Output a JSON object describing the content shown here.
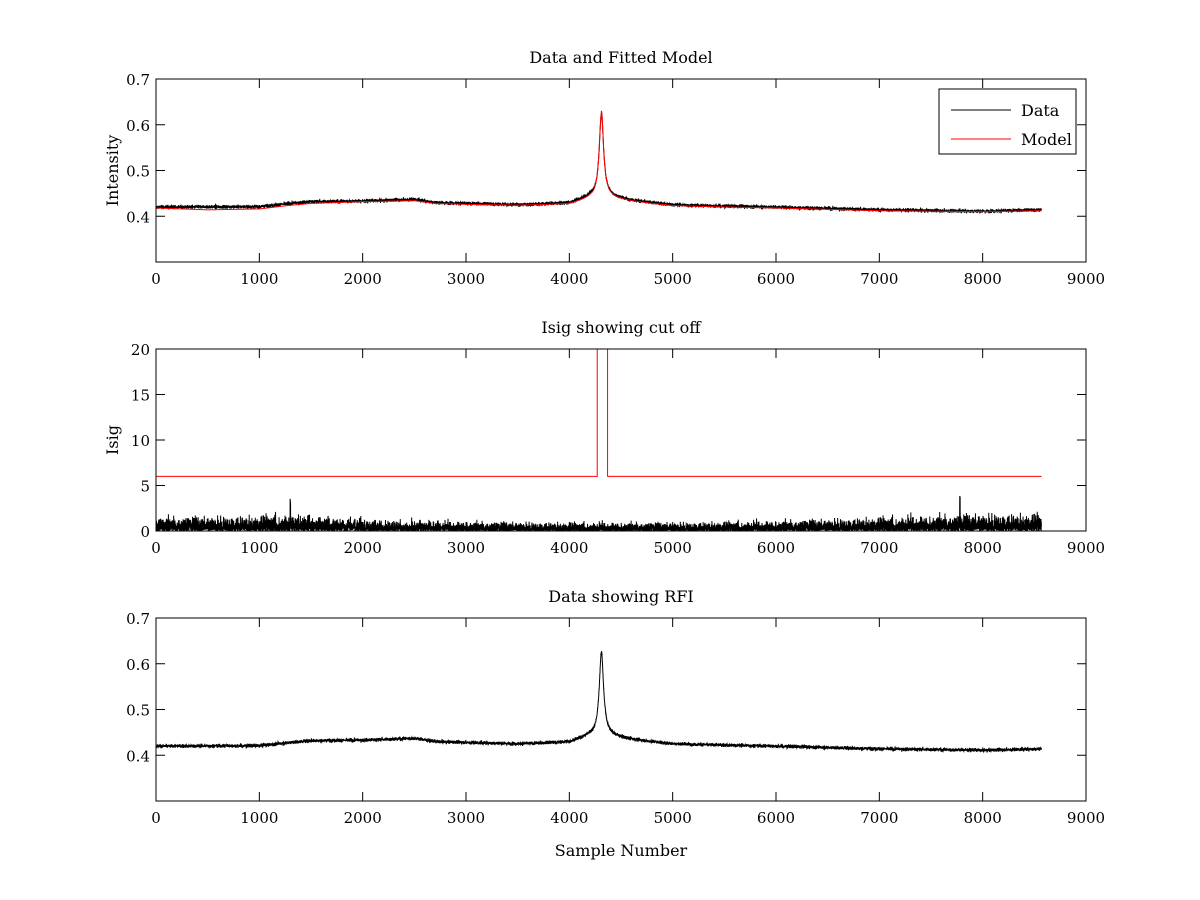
{
  "chart_data": [
    {
      "type": "line",
      "title": "Data and Fitted Model",
      "xlabel": "",
      "ylabel": "Intensity",
      "xlim": [
        0,
        9000
      ],
      "ylim": [
        0.3,
        0.7
      ],
      "xticks": [
        0,
        1000,
        2000,
        3000,
        4000,
        5000,
        6000,
        7000,
        8000,
        9000
      ],
      "yticks": [
        0.4,
        0.5,
        0.6,
        0.7
      ],
      "ytick_labels": [
        "0.4",
        "0.5",
        "0.6",
        "0.7"
      ],
      "legend": {
        "placement": "top-right",
        "entries": [
          "Data",
          "Model"
        ]
      },
      "series": [
        {
          "name": "Data",
          "color": "#000000",
          "style": "noisy",
          "noise_amplitude": 0.006,
          "n_points": 8570,
          "baseline": [
            [
              0,
              0.42
            ],
            [
              1000,
              0.421
            ],
            [
              1300,
              0.428
            ],
            [
              1500,
              0.432
            ],
            [
              2000,
              0.433
            ],
            [
              2500,
              0.437
            ],
            [
              2700,
              0.43
            ],
            [
              3000,
              0.428
            ],
            [
              3500,
              0.425
            ],
            [
              4000,
              0.428
            ],
            [
              4200,
              0.44
            ]
          ],
          "peak": {
            "center": 4310,
            "height": 0.62,
            "width": 25
          }
        },
        {
          "name": "Model",
          "color": "#ff0000",
          "style": "smooth",
          "n_points": 8570,
          "baseline": [
            [
              0,
              0.418
            ],
            [
              500,
              0.414
            ],
            [
              1000,
              0.416
            ],
            [
              1300,
              0.424
            ],
            [
              1500,
              0.428
            ],
            [
              2000,
              0.432
            ],
            [
              2500,
              0.434
            ],
            [
              2700,
              0.428
            ],
            [
              3000,
              0.426
            ],
            [
              3500,
              0.424
            ],
            [
              4000,
              0.426
            ],
            [
              4200,
              0.436
            ]
          ],
          "peak": {
            "center": 4310,
            "height": 0.625,
            "width": 25
          }
        }
      ]
    },
    {
      "type": "line",
      "title": "Isig showing cut off",
      "xlabel": "",
      "ylabel": "Isig",
      "xlim": [
        0,
        9000
      ],
      "ylim": [
        0,
        20
      ],
      "xticks": [
        0,
        1000,
        2000,
        3000,
        4000,
        5000,
        6000,
        7000,
        8000,
        9000
      ],
      "yticks": [
        0,
        5,
        10,
        15,
        20
      ],
      "series": [
        {
          "name": "Isig",
          "color": "#000000",
          "style": "spiky",
          "n_points": 8570,
          "amplitude_profile": [
            [
              0,
              1.6
            ],
            [
              1000,
              1.8
            ],
            [
              1300,
              2.0
            ],
            [
              2000,
              1.3
            ],
            [
              3000,
              1.1
            ],
            [
              4000,
              1.0
            ],
            [
              5000,
              1.0
            ],
            [
              6000,
              1.2
            ],
            [
              7000,
              1.6
            ],
            [
              8000,
              2.0
            ],
            [
              8570,
              2.0
            ]
          ],
          "occasional_spikes": [
            [
              1300,
              3.6
            ],
            [
              7780,
              4.0
            ]
          ]
        },
        {
          "name": "Cut off",
          "color": "#ff0000",
          "style": "step",
          "points": [
            [
              0,
              6
            ],
            [
              4270,
              6
            ],
            [
              4270,
              20
            ],
            [
              4370,
              20
            ],
            [
              4370,
              6
            ],
            [
              8570,
              6
            ]
          ]
        }
      ]
    },
    {
      "type": "line",
      "title": "Data showing RFI",
      "xlabel": "Sample Number",
      "ylabel": "",
      "xlim": [
        0,
        9000
      ],
      "ylim": [
        0.3,
        0.7
      ],
      "xticks": [
        0,
        1000,
        2000,
        3000,
        4000,
        5000,
        6000,
        7000,
        8000,
        9000
      ],
      "yticks": [
        0.4,
        0.5,
        0.6,
        0.7
      ],
      "ytick_labels": [
        "0.4",
        "0.5",
        "0.6",
        "0.7"
      ],
      "series": [
        {
          "name": "Data",
          "color": "#000000",
          "style": "noisy",
          "noise_amplitude": 0.006,
          "n_points": 8570,
          "baseline": [
            [
              0,
              0.42
            ],
            [
              1000,
              0.421
            ],
            [
              1300,
              0.428
            ],
            [
              1500,
              0.432
            ],
            [
              2000,
              0.433
            ],
            [
              2500,
              0.437
            ],
            [
              2700,
              0.43
            ],
            [
              3000,
              0.428
            ],
            [
              3500,
              0.425
            ],
            [
              4000,
              0.428
            ],
            [
              4200,
              0.44
            ]
          ],
          "peak": {
            "center": 4310,
            "height": 0.62,
            "width": 25
          }
        }
      ]
    }
  ]
}
